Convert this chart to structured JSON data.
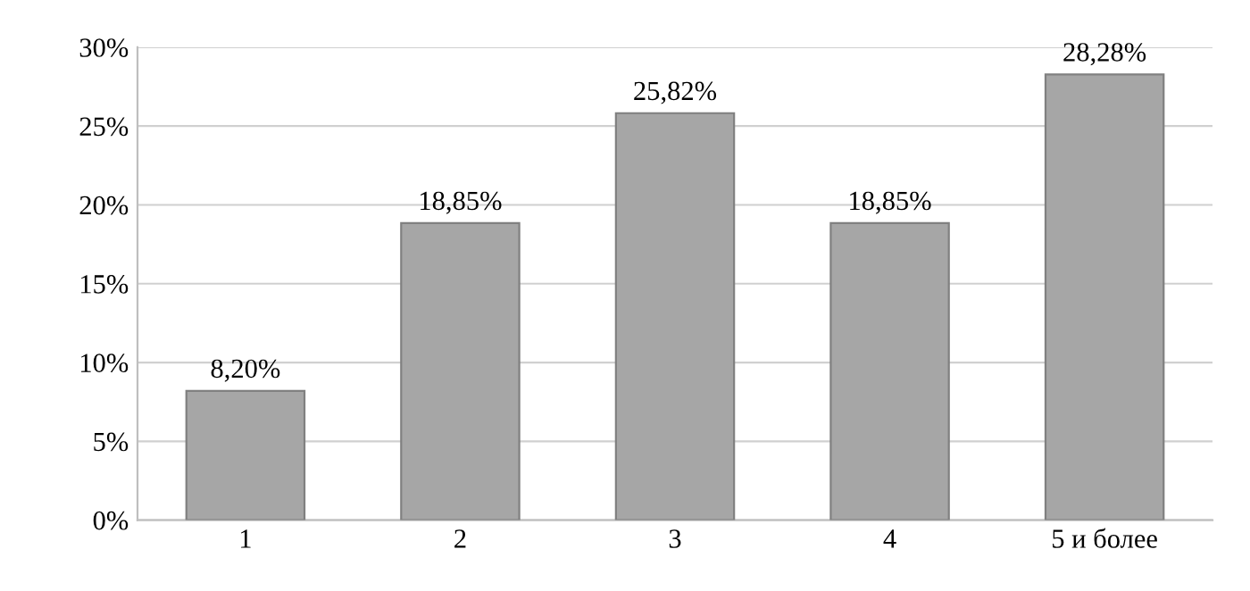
{
  "chart_data": {
    "type": "bar",
    "categories": [
      "1",
      "2",
      "3",
      "4",
      "5 и более"
    ],
    "values": [
      8.2,
      18.85,
      25.82,
      18.85,
      28.28
    ],
    "value_labels": [
      "8,20%",
      "18,85%",
      "25,82%",
      "18,85%",
      "28,28%"
    ],
    "color": "#a6a6a6",
    "ylim": [
      0,
      30
    ],
    "yticks": [
      {
        "value": 0,
        "label": "0%"
      },
      {
        "value": 5,
        "label": "5%"
      },
      {
        "value": 10,
        "label": "10%"
      },
      {
        "value": 15,
        "label": "15%"
      },
      {
        "value": 20,
        "label": "20%"
      },
      {
        "value": 25,
        "label": "25%"
      },
      {
        "value": 30,
        "label": "30%"
      }
    ],
    "grid": "y"
  }
}
